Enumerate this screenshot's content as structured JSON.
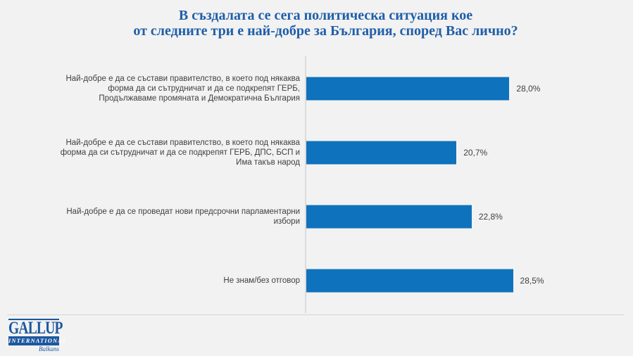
{
  "title": {
    "line1": "В създалата се сега политическа ситуация кое",
    "line2": "от следните три е най-добре за България, според Вас лично?"
  },
  "chart_data": {
    "type": "bar",
    "orientation": "horizontal",
    "title": "В създалата се сега политическа ситуация кое от следните три е най-добре за България, според Вас лично?",
    "categories": [
      "Най-добре е да се състави правителство, в което под някаква форма да си сътрудничат и да се подкрепят ГЕРБ, Продължаваме промяната и Демократична България",
      "Най-добре е да се състави правителство, в което под някаква форма да си сътрудничат и да се подкрепят ГЕРБ, ДПС, БСП и Има такъв народ",
      "Най-добре е да се проведат нови предсрочни парламентарни избори",
      "Не знам/без отговор"
    ],
    "values": [
      28.0,
      20.7,
      22.8,
      28.5
    ],
    "value_labels": [
      "28,0%",
      "20,7%",
      "22,8%",
      "28,5%"
    ],
    "xlim": [
      0,
      44
    ],
    "grid": false,
    "legend": false,
    "bar_color": "#0E72BC"
  },
  "logo": {
    "line1": "GALLUP",
    "line2": "INTERNATIONAL",
    "line3": "Balkans"
  },
  "colors": {
    "background": "#F2F2F2",
    "title_text": "#1F5EA8",
    "bar": "#0E72BC",
    "category_text": "#3F3F3F",
    "value_text": "#404040",
    "axis_line": "#DBDBDB",
    "separator": "#D5D5D5",
    "logo_blue": "#1D579F"
  }
}
